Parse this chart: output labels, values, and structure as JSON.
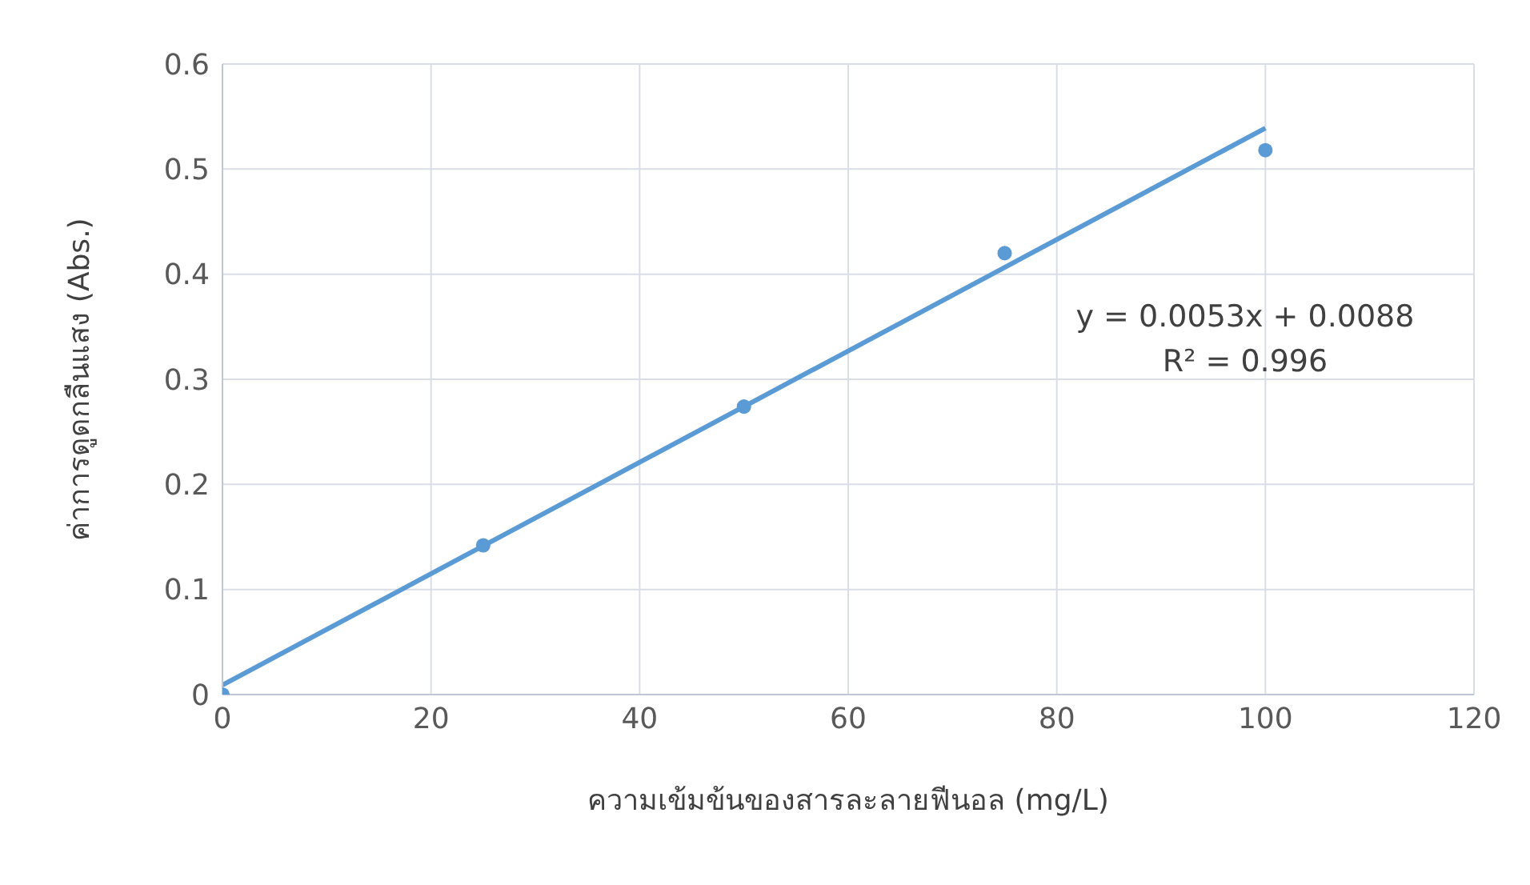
{
  "chart_data": {
    "type": "scatter",
    "xlabel": "ความเข้มข้นของสารละลายฟีนอล (mg/L)",
    "ylabel": "ค่าการดูดกลืนแสง (Abs.)",
    "x": [
      0,
      25,
      50,
      75,
      100
    ],
    "series": [
      {
        "color": "#5b9bd5",
        "marker": "circle",
        "values": [
          0,
          0.142,
          0.274,
          0.42,
          0.518
        ]
      },
      {
        "type": "line",
        "color": "#5b9bd5",
        "marker": "none",
        "x": [
          0,
          100
        ],
        "values": [
          0.009,
          0.539
        ]
      }
    ],
    "xlim": [
      0,
      120
    ],
    "xticks": [
      0,
      20,
      40,
      60,
      80,
      100,
      120
    ],
    "ylim": [
      0,
      0.6
    ],
    "yticks": [
      0,
      0.1,
      0.2,
      0.3,
      0.4,
      0.5,
      0.6
    ],
    "grid": true,
    "annotations": [
      "y = 0.0053x + 0.0088",
      "R² = 0.996"
    ]
  }
}
